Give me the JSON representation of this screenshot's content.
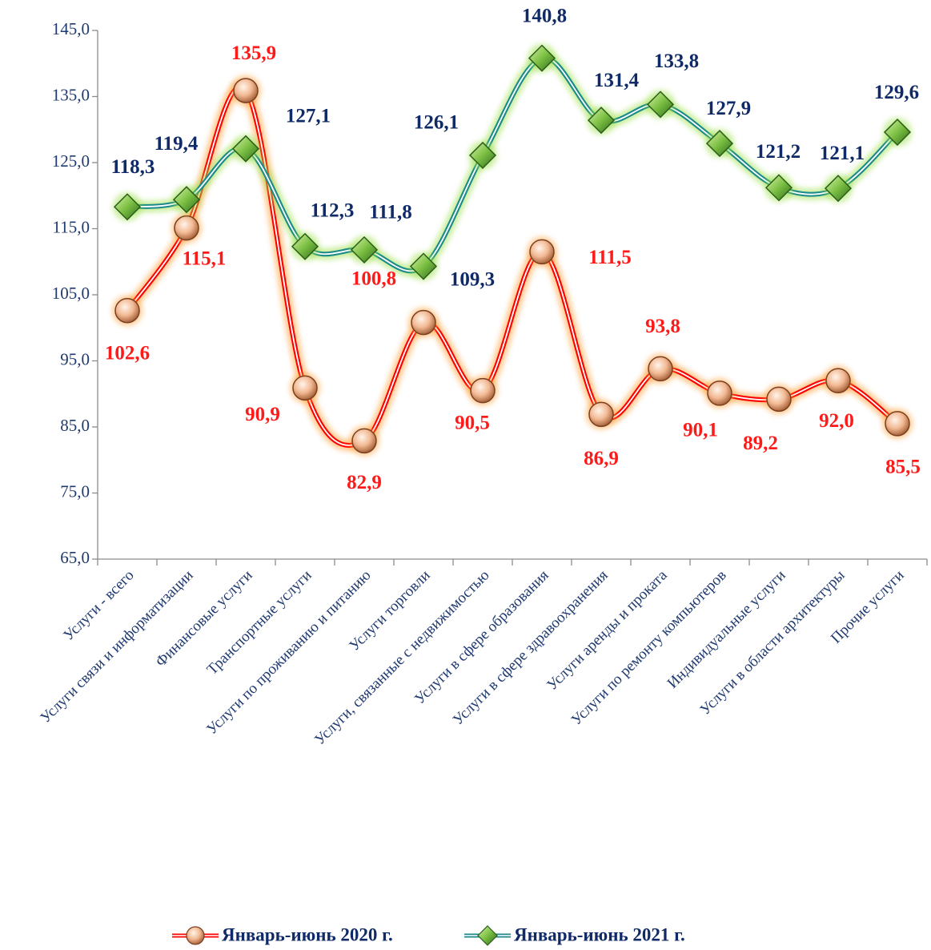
{
  "chart_data": {
    "type": "line",
    "categories": [
      "Услуги - всего",
      "Услуги связи и информатизации",
      "Финансовые услуги",
      "Транспортные услуги",
      "Услуги по проживанию и питанию",
      "Услуги торговли",
      "Услуги, связанные с недвижимостью",
      "Услуги в сфере образования",
      "Услуги в сфере здравоохранения",
      "Услуги аренды и проката",
      "Услуги по ремонту компьютеров",
      "Индивидуальные услуги",
      "Услуги в области архитектуры",
      "Прочие услуги"
    ],
    "series": [
      {
        "name": "Январь-июнь 2020 г.",
        "color": "#ff0000",
        "values": [
          102.6,
          115.1,
          135.9,
          90.9,
          82.9,
          100.8,
          90.5,
          111.5,
          86.9,
          93.8,
          90.1,
          89.2,
          92.0,
          85.5
        ],
        "value_labels": [
          "102,6",
          "115,1",
          "135,9",
          "90,9",
          "82,9",
          "100,8",
          "90,5",
          "111,5",
          "86,9",
          "93,8",
          "90,1",
          "89,2",
          "92,0",
          "85,5"
        ]
      },
      {
        "name": "Январь-июнь 2021 г.",
        "color": "#1a8a8a",
        "values": [
          118.3,
          119.4,
          127.1,
          112.3,
          111.8,
          109.3,
          126.1,
          140.8,
          131.4,
          133.8,
          127.9,
          121.2,
          121.1,
          129.6
        ],
        "value_labels": [
          "118,3",
          "119,4",
          "127,1",
          "112,3",
          "111,8",
          "109,3",
          "126,1",
          "140,8",
          "131,4",
          "133,8",
          "127,9",
          "121,2",
          "121,1",
          "129,6"
        ]
      }
    ],
    "ylim": [
      65,
      145
    ],
    "yticks": [
      {
        "value": 65,
        "label": "65,0"
      },
      {
        "value": 75,
        "label": "75,0"
      },
      {
        "value": 85,
        "label": "85,0"
      },
      {
        "value": 95,
        "label": "95,0"
      },
      {
        "value": 105,
        "label": "105,0"
      },
      {
        "value": 115,
        "label": "115,0"
      },
      {
        "value": 125,
        "label": "125,0"
      },
      {
        "value": 135,
        "label": "135,0"
      },
      {
        "value": 145,
        "label": "145,0"
      }
    ],
    "grid": false,
    "legend": "bottom"
  }
}
